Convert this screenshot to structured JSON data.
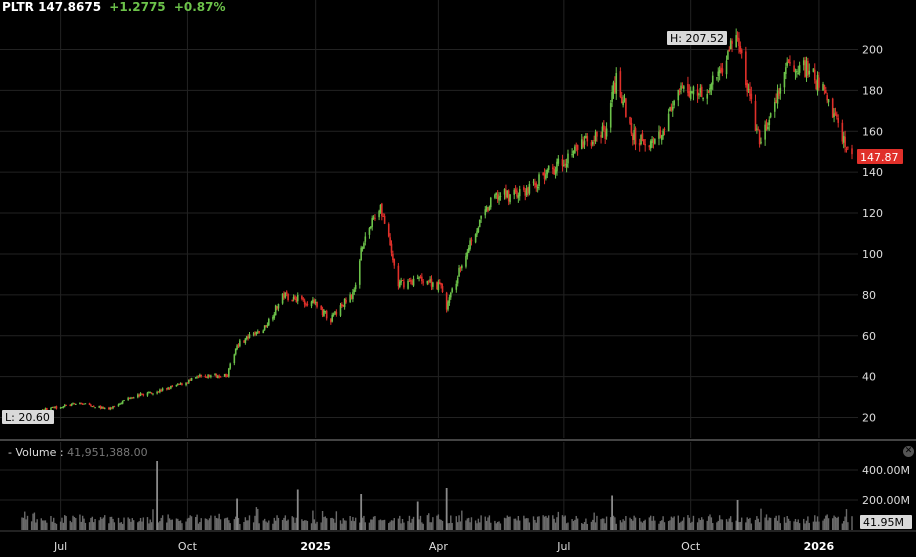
{
  "header": {
    "symbol": "PLTR",
    "price": "147.8675",
    "change": "+1.2775",
    "change_pct": "+0.87%"
  },
  "volume_panel": {
    "label": "Volume",
    "separator": ":",
    "value": "41,951,388.00"
  },
  "colors": {
    "up": "#6cc24a",
    "down": "#e0302a",
    "grid": "#222222",
    "volume": "#6a6a6a",
    "last_price_bg": "#e0302a"
  },
  "chart_data": [
    {
      "type": "candlestick",
      "series_name": "PLTR",
      "x_ticks": [
        "Jul",
        "Oct",
        "2025",
        "Apr",
        "Jul",
        "Oct",
        "2026"
      ],
      "y_ticks": [
        20,
        40,
        60,
        80,
        100,
        120,
        140,
        160,
        180,
        200
      ],
      "ylim": [
        10,
        210
      ],
      "high_label": "H: 207.52",
      "low_label": "L: 20.60",
      "last_price_label": "147.87",
      "grid": true,
      "approx_path": [
        [
          "2024-06-03",
          22
        ],
        [
          "2024-06-28",
          25
        ],
        [
          "2024-07-15",
          27
        ],
        [
          "2024-08-05",
          24
        ],
        [
          "2024-08-20",
          30
        ],
        [
          "2024-09-10",
          33
        ],
        [
          "2024-09-25",
          36
        ],
        [
          "2024-10-10",
          40
        ],
        [
          "2024-10-30",
          41
        ],
        [
          "2024-11-06",
          56
        ],
        [
          "2024-11-25",
          63
        ],
        [
          "2024-12-10",
          80
        ],
        [
          "2024-12-31",
          76
        ],
        [
          "2025-01-13",
          68
        ],
        [
          "2025-01-31",
          83
        ],
        [
          "2025-02-04",
          104
        ],
        [
          "2025-02-18",
          124
        ],
        [
          "2025-03-03",
          85
        ],
        [
          "2025-03-20",
          88
        ],
        [
          "2025-04-03",
          84
        ],
        [
          "2025-04-07",
          74
        ],
        [
          "2025-04-25",
          108
        ],
        [
          "2025-05-12",
          128
        ],
        [
          "2025-06-02",
          130
        ],
        [
          "2025-06-25",
          143
        ],
        [
          "2025-07-15",
          154
        ],
        [
          "2025-07-31",
          160
        ],
        [
          "2025-08-08",
          187
        ],
        [
          "2025-08-20",
          157
        ],
        [
          "2025-09-05",
          155
        ],
        [
          "2025-09-25",
          180
        ],
        [
          "2025-10-15",
          180
        ],
        [
          "2025-11-03",
          207
        ],
        [
          "2025-11-20",
          154
        ],
        [
          "2025-12-02",
          175
        ],
        [
          "2025-12-12",
          194
        ],
        [
          "2025-12-24",
          190
        ],
        [
          "2026-01-06",
          180
        ],
        [
          "2026-01-15",
          165
        ],
        [
          "2026-01-24",
          147.87
        ]
      ]
    },
    {
      "type": "bar",
      "series_name": "Volume",
      "y_ticks": [
        "200.00M",
        "400.00M"
      ],
      "y_tick_values": [
        200,
        400
      ],
      "ylim": [
        0,
        480
      ],
      "last_value_label": "41.95M",
      "spikes": [
        [
          "2024-09-09",
          460
        ],
        [
          "2024-11-06",
          210
        ],
        [
          "2024-12-20",
          270
        ],
        [
          "2025-02-04",
          240
        ],
        [
          "2025-03-17",
          190
        ],
        [
          "2025-04-07",
          280
        ],
        [
          "2025-08-05",
          230
        ],
        [
          "2025-11-04",
          200
        ]
      ]
    }
  ]
}
